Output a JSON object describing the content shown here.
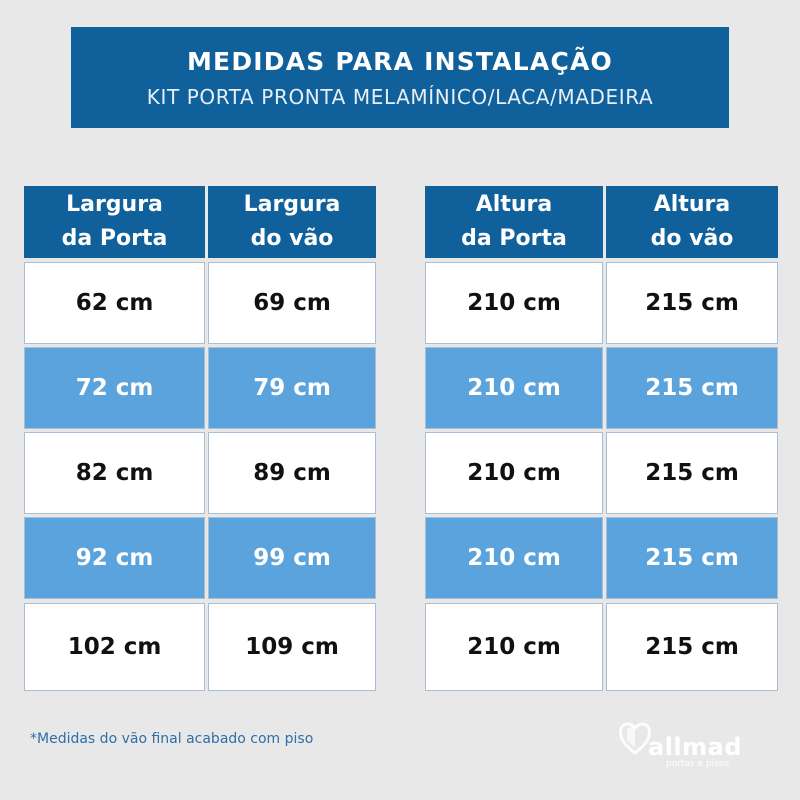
{
  "header": {
    "title": "MEDIDAS PARA INSTALAÇÃO",
    "subtitle": "KIT PORTA PRONTA MELAMÍNICO/LACA/MADEIRA"
  },
  "table": {
    "headers": [
      "Largura\nda Porta",
      "Largura\ndo vão",
      "Altura\nda Porta",
      "Altura\ndo vão"
    ],
    "rows": [
      [
        "62 cm",
        "69 cm",
        "210 cm",
        "215 cm"
      ],
      [
        "72 cm",
        "79 cm",
        "210 cm",
        "215 cm"
      ],
      [
        "82 cm",
        "89 cm",
        "210 cm",
        "215 cm"
      ],
      [
        "92 cm",
        "99 cm",
        "210 cm",
        "215 cm"
      ],
      [
        "102 cm",
        "109 cm",
        "210 cm",
        "215 cm"
      ]
    ]
  },
  "footnote": "*Medidas do vão final acabado com piso",
  "logo": {
    "name": "allmad",
    "tagline": "portas e pisos"
  },
  "colors": {
    "background": "#e8e8e8",
    "header_blue": "#0f609b",
    "row_blue": "#5ba3dd",
    "row_white": "#ffffff"
  }
}
